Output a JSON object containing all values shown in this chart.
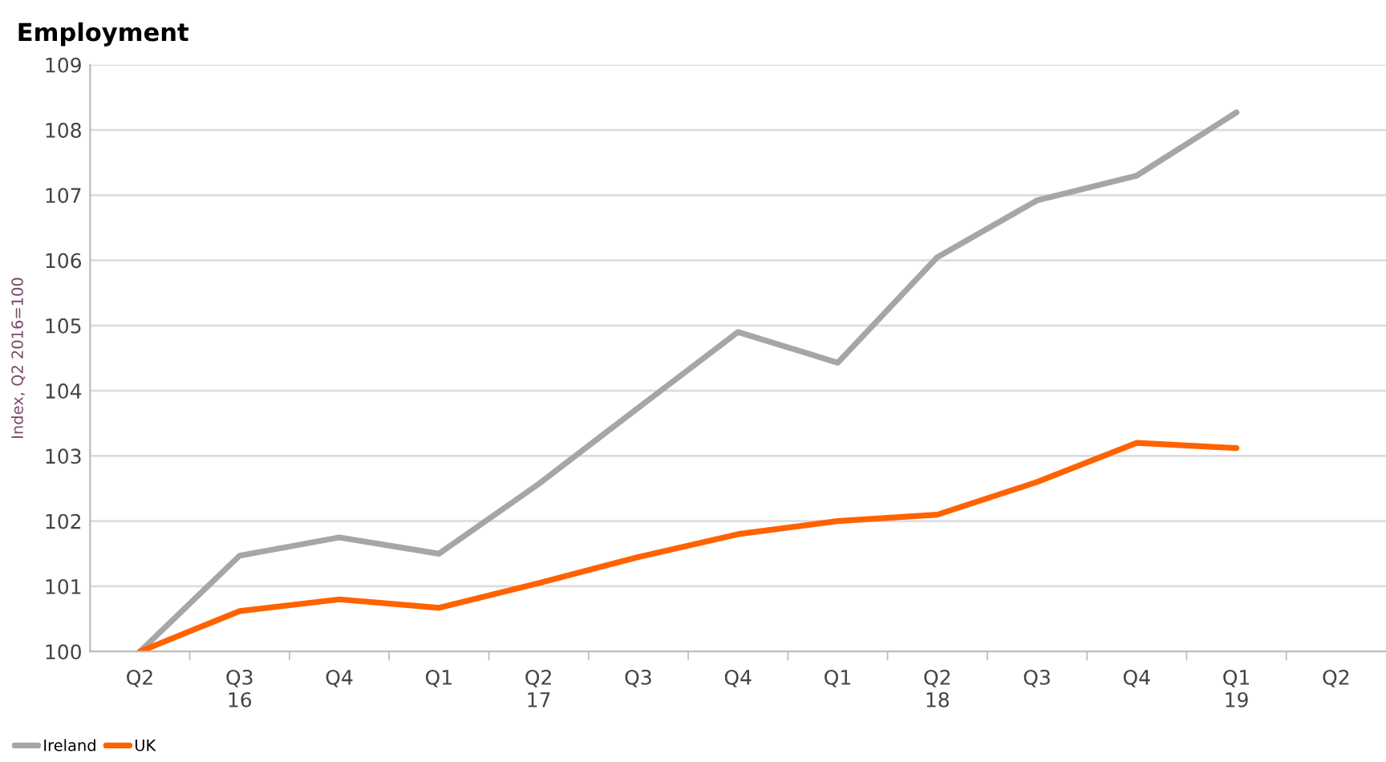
{
  "chart_data": {
    "type": "line",
    "title": "Employment",
    "ylabel": "Index, Q2 2016=100",
    "categories": [
      "Q2",
      "Q3\n16",
      "Q4",
      "Q1",
      "Q2\n17",
      "Q3",
      "Q4",
      "Q1",
      "Q2\n18",
      "Q3",
      "Q4",
      "Q1\n19",
      "Q2"
    ],
    "series": [
      {
        "name": "Ireland",
        "color": "#a6a6a6",
        "values": [
          100,
          101.47,
          101.75,
          101.5,
          102.57,
          103.74,
          104.9,
          104.43,
          106.05,
          106.92,
          107.3,
          108.27,
          null
        ]
      },
      {
        "name": "UK",
        "color": "#ff6200",
        "values": [
          100,
          100.62,
          100.8,
          100.67,
          101.05,
          101.45,
          101.8,
          102.0,
          102.1,
          102.6,
          103.2,
          103.12,
          null
        ]
      }
    ],
    "ylim": [
      100,
      109
    ],
    "yticks": [
      100,
      101,
      102,
      103,
      104,
      105,
      106,
      107,
      108,
      109
    ],
    "grid": "y",
    "legend": "bottom left",
    "marker": "none",
    "line_style": "solid"
  }
}
